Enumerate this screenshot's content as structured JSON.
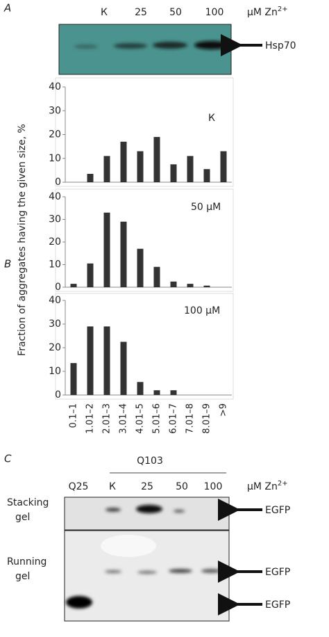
{
  "panel_a": {
    "label": "A",
    "lanes": [
      "К",
      "25",
      "50",
      "100"
    ],
    "unit": "μM Zn",
    "unit_sup": "2+",
    "marker": "Hsp70"
  },
  "panel_b": {
    "label": "B",
    "y_label": "Fraction of aggregates having the given size, %"
  },
  "chart_data": [
    {
      "type": "bar",
      "title": "К",
      "values": [
        0,
        3.5,
        11,
        17,
        13,
        19,
        7.5,
        11,
        5.5,
        13
      ],
      "color": "#333333",
      "ylim": [
        0,
        40
      ],
      "yticks": [
        0,
        10,
        20,
        30,
        40
      ]
    },
    {
      "type": "bar",
      "title": "50 μM",
      "values": [
        1.5,
        10.5,
        33,
        29,
        17,
        9,
        2.5,
        1.5,
        0.7,
        0
      ],
      "color": "#333333",
      "ylim": [
        0,
        40
      ],
      "yticks": [
        0,
        10,
        20,
        30,
        40
      ]
    },
    {
      "type": "bar",
      "title": "100 μM",
      "categories": [
        "0.1–1",
        "1.01–2",
        "2.01–3",
        "3.01–4",
        "4.01–5",
        "5.01–6",
        "6.01–7",
        "7.01–8",
        "8.01–9",
        ">9"
      ],
      "values": [
        13.5,
        29,
        29,
        22.5,
        5.5,
        2,
        2,
        0,
        0,
        0
      ],
      "color": "#333333",
      "ylim": [
        0,
        40
      ],
      "yticks": [
        0,
        10,
        20,
        30,
        40
      ]
    }
  ],
  "panel_c": {
    "label": "C",
    "group": "Q103",
    "lanes": [
      "Q25",
      "К",
      "25",
      "50",
      "100"
    ],
    "unit": "μM Zn",
    "unit_sup": "2+",
    "gels": [
      [
        "Stacking",
        "gel"
      ],
      [
        "Running",
        "gel"
      ]
    ],
    "markers": [
      "EGFP",
      "EGFP",
      "EGFP"
    ]
  }
}
